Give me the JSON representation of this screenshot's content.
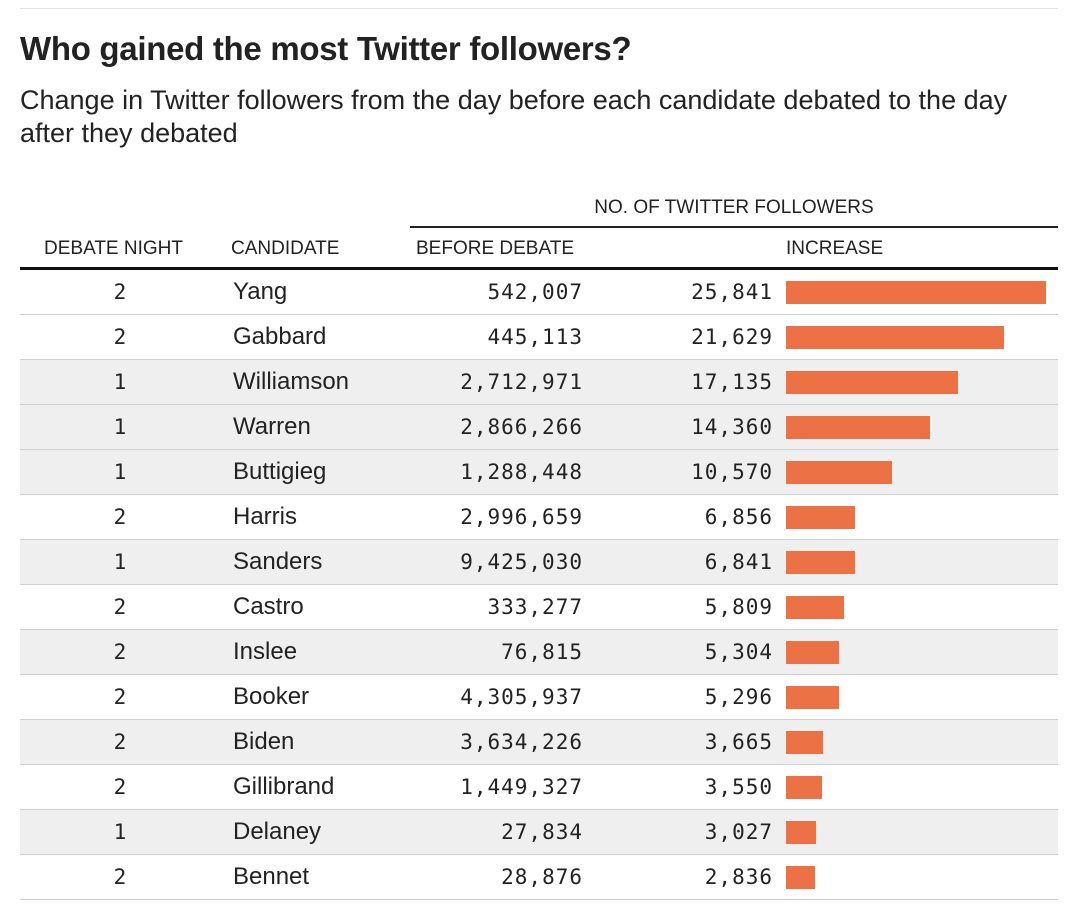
{
  "header": {
    "title": "Who gained the most Twitter followers?",
    "subtitle": "Change in Twitter followers from the day before each candidate debated to the day after they debated"
  },
  "table": {
    "group_label": "NO. OF TWITTER FOLLOWERS",
    "columns": {
      "debate_night": "DEBATE NIGHT",
      "candidate": "CANDIDATE",
      "before": "BEFORE DEBATE",
      "increase": "INCREASE"
    },
    "bar_color": "#ec7144"
  },
  "chart_data": {
    "type": "bar",
    "orientation": "horizontal",
    "categories": [
      "Yang",
      "Gabbard",
      "Williamson",
      "Warren",
      "Buttigieg",
      "Harris",
      "Sanders",
      "Castro",
      "Inslee",
      "Booker",
      "Biden",
      "Gillibrand",
      "Delaney",
      "Bennet"
    ],
    "values": [
      25841,
      21629,
      17135,
      14360,
      10570,
      6856,
      6841,
      5809,
      5304,
      5296,
      3665,
      3550,
      3027,
      2836
    ],
    "xlim": [
      0,
      25841
    ],
    "rows": [
      {
        "night": "2",
        "candidate": "Yang",
        "before": "542,007",
        "increase": "25,841",
        "value": 25841
      },
      {
        "night": "2",
        "candidate": "Gabbard",
        "before": "445,113",
        "increase": "21,629",
        "value": 21629
      },
      {
        "night": "1",
        "candidate": "Williamson",
        "before": "2,712,971",
        "increase": "17,135",
        "value": 17135
      },
      {
        "night": "1",
        "candidate": "Warren",
        "before": "2,866,266",
        "increase": "14,360",
        "value": 14360
      },
      {
        "night": "1",
        "candidate": "Buttigieg",
        "before": "1,288,448",
        "increase": "10,570",
        "value": 10570
      },
      {
        "night": "2",
        "candidate": "Harris",
        "before": "2,996,659",
        "increase": "6,856",
        "value": 6856
      },
      {
        "night": "1",
        "candidate": "Sanders",
        "before": "9,425,030",
        "increase": "6,841",
        "value": 6841
      },
      {
        "night": "2",
        "candidate": "Castro",
        "before": "333,277",
        "increase": "5,809",
        "value": 5809
      },
      {
        "night": "2",
        "candidate": "Inslee",
        "before": "76,815",
        "increase": "5,304",
        "value": 5304
      },
      {
        "night": "2",
        "candidate": "Booker",
        "before": "4,305,937",
        "increase": "5,296",
        "value": 5296
      },
      {
        "night": "2",
        "candidate": "Biden",
        "before": "3,634,226",
        "increase": "3,665",
        "value": 3665
      },
      {
        "night": "2",
        "candidate": "Gillibrand",
        "before": "1,449,327",
        "increase": "3,550",
        "value": 3550
      },
      {
        "night": "1",
        "candidate": "Delaney",
        "before": "27,834",
        "increase": "3,027",
        "value": 3027
      },
      {
        "night": "2",
        "candidate": "Bennet",
        "before": "28,876",
        "increase": "2,836",
        "value": 2836
      }
    ]
  }
}
